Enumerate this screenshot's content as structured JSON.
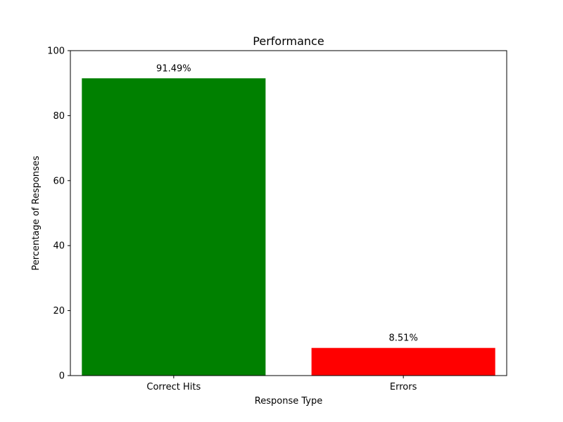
{
  "chart_data": {
    "type": "bar",
    "title": "Performance",
    "xlabel": "Response Type",
    "ylabel": "Percentage of Responses",
    "categories": [
      "Correct Hits",
      "Errors"
    ],
    "values": [
      91.49,
      8.51
    ],
    "data_labels": [
      "91.49%",
      "8.51%"
    ],
    "colors": [
      "#008000",
      "#ff0000"
    ],
    "ylim": [
      0,
      100
    ],
    "yticks": [
      0,
      20,
      40,
      60,
      80,
      100
    ],
    "grid": false,
    "legend": false
  }
}
